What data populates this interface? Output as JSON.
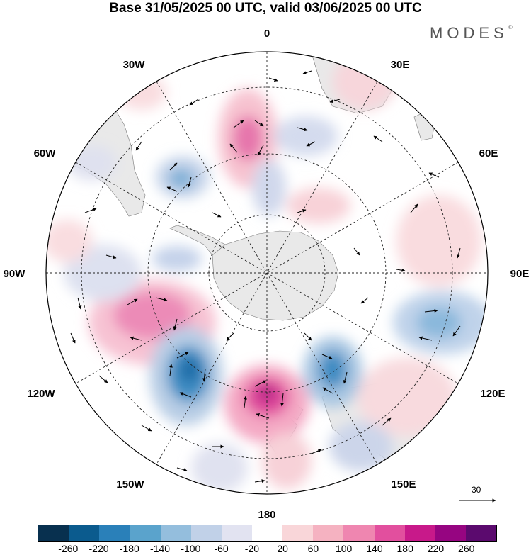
{
  "title": "Base 31/05/2025 00 UTC, valid 03/06/2025 00 UTC",
  "logo": "MODES",
  "logo_mark": "©",
  "meridian_labels": {
    "m0": "0",
    "m30e": "30E",
    "m60e": "60E",
    "m90e": "90E",
    "m120e": "120E",
    "m150e": "150E",
    "m180": "180",
    "m150w": "150W",
    "m120w": "120W",
    "m90w": "90W",
    "m60w": "60W",
    "m30w": "30W"
  },
  "vector_scale_label": "30",
  "colorbar": {
    "colors": [
      "#08304f",
      "#0b5b8e",
      "#2a80b9",
      "#5aa3cc",
      "#94bedd",
      "#c1d1e8",
      "#e2e3f1",
      "#ffffff",
      "#f9d6d9",
      "#f5b2c1",
      "#ef86b0",
      "#e24f9e",
      "#c8198a",
      "#960581",
      "#5b0a6e"
    ],
    "ticks": [
      "-260",
      "-220",
      "-180",
      "-140",
      "-100",
      "-60",
      "-20",
      "20",
      "60",
      "100",
      "140",
      "180",
      "220",
      "260"
    ]
  }
}
